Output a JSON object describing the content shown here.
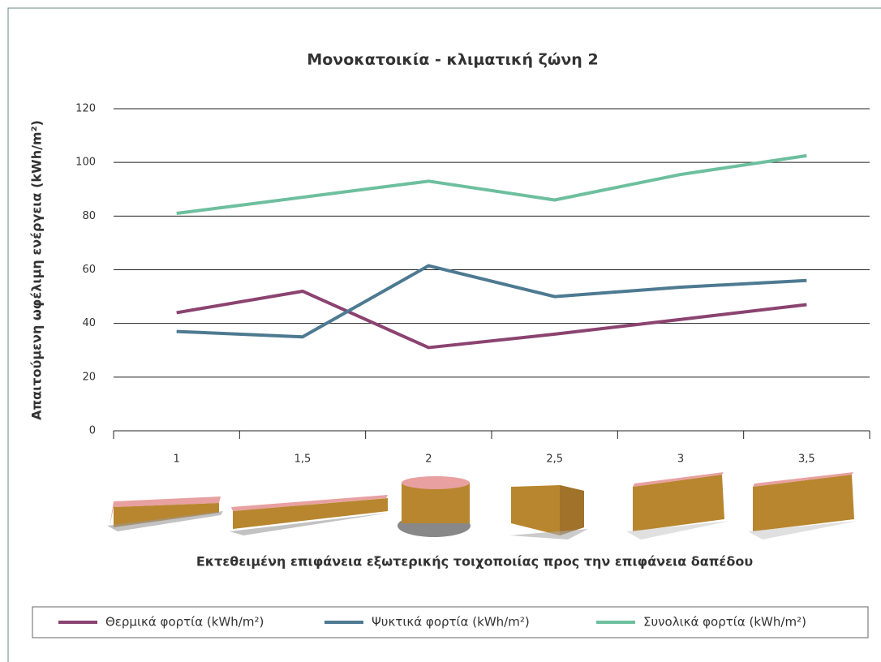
{
  "chart_data": {
    "type": "line",
    "title": "Μονοκατοικία - κλιματική ζώνη 2",
    "y_label": "Απαιτούμενη ωφέλιμη ενέργεια (kWh/m²)",
    "x_label": "Εκτεθειμένη επιφάνεια εξωτερικής τοιχοποιίας προς την επιφάνεια δαπέδου",
    "categories": [
      "1",
      "1,5",
      "2",
      "2,5",
      "3",
      "3,5"
    ],
    "series": [
      {
        "name": "Θερμικά φορτία (kWh/m²)",
        "color": "#8b4370",
        "values": [
          44,
          52,
          31,
          36,
          41.5,
          47
        ]
      },
      {
        "name": "Ψυκτικά φορτία (kWh/m²)",
        "color": "#4d7a91",
        "values": [
          37,
          35,
          61.5,
          50,
          53.5,
          56
        ]
      },
      {
        "name": "Συνολικά φορτία (kWh/m²)",
        "color": "#6dbf9e",
        "values": [
          81,
          87,
          93,
          86,
          95.5,
          102.5
        ]
      }
    ],
    "ylim": [
      0,
      120
    ],
    "yticks": [
      0,
      20,
      40,
      60,
      80,
      100,
      120
    ],
    "grid": true,
    "legend": "bottom"
  }
}
